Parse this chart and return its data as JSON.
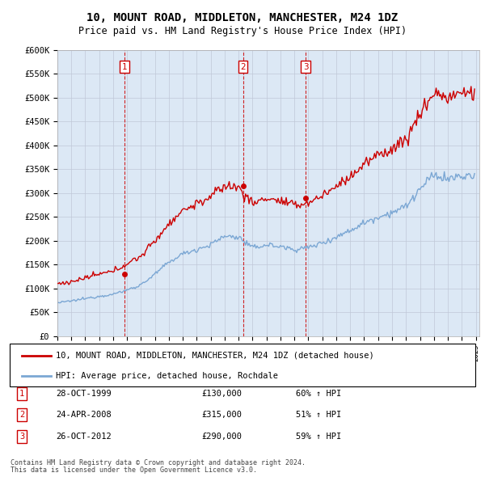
{
  "title": "10, MOUNT ROAD, MIDDLETON, MANCHESTER, M24 1DZ",
  "subtitle": "Price paid vs. HM Land Registry’s House Price Index (HPI)",
  "subtitle2": "Price paid vs. HM Land Registry's House Price Index (HPI)",
  "title_fontsize": 10.5,
  "subtitle_fontsize": 9.5,
  "purchases": [
    {
      "label": "1",
      "date": "1999-10-28",
      "price": 130000,
      "pct": "60% ↑ HPI",
      "display_date": "28-OCT-1999"
    },
    {
      "label": "2",
      "date": "2008-04-24",
      "price": 315000,
      "pct": "51% ↑ HPI",
      "display_date": "24-APR-2008"
    },
    {
      "label": "3",
      "date": "2012-10-26",
      "price": 290000,
      "pct": "59% ↑ HPI",
      "display_date": "26-OCT-2012"
    }
  ],
  "hpi_color": "#7ba7d4",
  "price_color": "#cc0000",
  "marker_color": "#cc0000",
  "grid_color": "#c0c8d8",
  "chart_bg": "#dce8f5",
  "ylim": [
    0,
    600000
  ],
  "yticks": [
    0,
    50000,
    100000,
    150000,
    200000,
    250000,
    300000,
    350000,
    400000,
    450000,
    500000,
    550000,
    600000
  ],
  "background_color": "#ffffff",
  "legend_label_property": "10, MOUNT ROAD, MIDDLETON, MANCHESTER, M24 1DZ (detached house)",
  "legend_label_hpi": "HPI: Average price, detached house, Rochdale",
  "footer1": "Contains HM Land Registry data © Crown copyright and database right 2024.",
  "footer2": "This data is licensed under the Open Government Licence v3.0.",
  "hpi_yearly": {
    "1995": 70000,
    "1996": 74000,
    "1997": 79000,
    "1998": 84000,
    "1999": 88000,
    "2000": 97000,
    "2001": 108000,
    "2002": 130000,
    "2003": 155000,
    "2004": 173000,
    "2005": 182000,
    "2006": 192000,
    "2007": 210000,
    "2008": 208000,
    "2009": 185000,
    "2010": 192000,
    "2011": 188000,
    "2012": 182000,
    "2013": 186000,
    "2014": 196000,
    "2015": 208000,
    "2016": 222000,
    "2017": 238000,
    "2018": 250000,
    "2019": 260000,
    "2020": 272000,
    "2021": 308000,
    "2022": 338000,
    "2023": 330000,
    "2024": 335000
  },
  "prop_yearly": {
    "1995": 110000,
    "1996": 114000,
    "1997": 122000,
    "1998": 130000,
    "1999": 136000,
    "2000": 152000,
    "2001": 168000,
    "2002": 200000,
    "2003": 236000,
    "2004": 264000,
    "2005": 278000,
    "2006": 292000,
    "2007": 316000,
    "2008": 312000,
    "2009": 278000,
    "2010": 290000,
    "2011": 283000,
    "2012": 274000,
    "2013": 280000,
    "2014": 295000,
    "2015": 314000,
    "2016": 335000,
    "2017": 360000,
    "2018": 380000,
    "2019": 393000,
    "2020": 412000,
    "2021": 466000,
    "2022": 511000,
    "2023": 500000,
    "2024": 510000
  }
}
